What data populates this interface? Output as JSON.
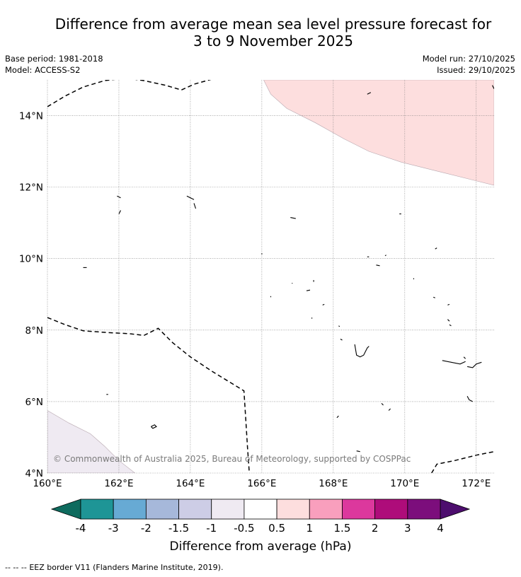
{
  "title": {
    "line1": "Difference from average mean sea level pressure forecast for",
    "line2": "3 to 9 November 2025"
  },
  "meta": {
    "base_period": "Base period: 1981-2018",
    "model": "Model: ACCESS-S2",
    "model_run": "Model run: 27/10/2025",
    "issued": "Issued: 29/10/2025"
  },
  "map": {
    "lon_range": [
      160,
      172.5
    ],
    "lat_range": [
      4,
      15
    ],
    "lon_ticks": [
      {
        "value": 160,
        "label": "160°E"
      },
      {
        "value": 162,
        "label": "162°E"
      },
      {
        "value": 164,
        "label": "164°E"
      },
      {
        "value": 166,
        "label": "166°E"
      },
      {
        "value": 168,
        "label": "168°E"
      },
      {
        "value": 170,
        "label": "170°E"
      },
      {
        "value": 172,
        "label": "172°E"
      }
    ],
    "lat_ticks": [
      {
        "value": 4,
        "label": "4°N"
      },
      {
        "value": 6,
        "label": "6°N"
      },
      {
        "value": 8,
        "label": "8°N"
      },
      {
        "value": 10,
        "label": "10°N"
      },
      {
        "value": 12,
        "label": "12°N"
      },
      {
        "value": 14,
        "label": "14°N"
      }
    ],
    "copyright": "© Commonwealth of Australia 2025, Bureau of Meteorology, supported by COSPPac",
    "regions": [
      {
        "category": "0.5 to 1",
        "color": "#fddede",
        "lonlat": [
          [
            166.05,
            15
          ],
          [
            166.25,
            14.6
          ],
          [
            166.7,
            14.2
          ],
          [
            167.5,
            13.8
          ],
          [
            168.3,
            13.35
          ],
          [
            169,
            13.0
          ],
          [
            169.9,
            12.7
          ],
          [
            170.9,
            12.45
          ],
          [
            171.9,
            12.2
          ],
          [
            172.5,
            12.05
          ],
          [
            172.5,
            15
          ]
        ]
      },
      {
        "category": "-1 to -0.5",
        "color": "#efeaf2",
        "lonlat": [
          [
            160,
            5.75
          ],
          [
            160.6,
            5.4
          ],
          [
            161.2,
            5.1
          ],
          [
            161.6,
            4.75
          ],
          [
            162,
            4.35
          ],
          [
            162.45,
            4.0
          ],
          [
            160,
            4.0
          ]
        ]
      }
    ],
    "eez_borders": [
      [
        [
          160,
          14.25
        ],
        [
          160.5,
          14.55
        ],
        [
          161,
          14.8
        ],
        [
          161.6,
          14.98
        ],
        [
          162.2,
          15.05
        ],
        [
          162.7,
          14.98
        ],
        [
          163.3,
          14.85
        ],
        [
          163.75,
          14.72
        ],
        [
          164.1,
          14.88
        ],
        [
          164.6,
          15.02
        ]
      ],
      [
        [
          160,
          8.35
        ],
        [
          160.5,
          8.15
        ],
        [
          161,
          7.98
        ],
        [
          161.7,
          7.93
        ],
        [
          162.3,
          7.9
        ],
        [
          162.7,
          7.85
        ],
        [
          163.1,
          8.05
        ],
        [
          163.5,
          7.65
        ],
        [
          164,
          7.25
        ],
        [
          164.6,
          6.85
        ],
        [
          165.5,
          6.3
        ],
        [
          165.55,
          5.5
        ],
        [
          165.6,
          4.7
        ],
        [
          165.65,
          4.0
        ]
      ],
      [
        [
          170.75,
          4.0
        ],
        [
          170.9,
          4.25
        ],
        [
          171.4,
          4.35
        ],
        [
          172,
          4.5
        ],
        [
          172.5,
          4.6
        ]
      ]
    ],
    "islands": [
      [
        [
          161.95,
          11.75
        ],
        [
          162.05,
          11.7
        ]
      ],
      [
        [
          162.05,
          11.35
        ],
        [
          162.0,
          11.25
        ]
      ],
      [
        [
          163.9,
          11.75
        ],
        [
          164.1,
          11.65
        ]
      ],
      [
        [
          164.1,
          11.55
        ],
        [
          164.15,
          11.4
        ]
      ],
      [
        [
          166.8,
          11.15
        ],
        [
          166.95,
          11.12
        ]
      ],
      [
        [
          169.85,
          11.25
        ],
        [
          169.9,
          11.25
        ]
      ],
      [
        [
          168.95,
          14.6
        ],
        [
          169.05,
          14.65
        ]
      ],
      [
        [
          172.45,
          14.85
        ],
        [
          172.5,
          14.75
        ]
      ],
      [
        [
          161,
          9.75
        ],
        [
          161.1,
          9.75
        ]
      ],
      [
        [
          166,
          10.15
        ],
        [
          166,
          10.12
        ]
      ],
      [
        [
          168.95,
          10.05
        ],
        [
          169,
          10.05
        ]
      ],
      [
        [
          169.45,
          10.08
        ],
        [
          169.48,
          10.1
        ]
      ],
      [
        [
          169.2,
          9.82
        ],
        [
          169.3,
          9.8
        ]
      ],
      [
        [
          170.25,
          9.45
        ],
        [
          170.25,
          9.42
        ]
      ],
      [
        [
          170.85,
          10.27
        ],
        [
          170.9,
          10.3
        ]
      ],
      [
        [
          166.25,
          8.92
        ],
        [
          166.25,
          8.95
        ]
      ],
      [
        [
          166.85,
          9.32
        ],
        [
          166.85,
          9.3
        ]
      ],
      [
        [
          167.25,
          9.1
        ],
        [
          167.35,
          9.12
        ]
      ],
      [
        [
          167.45,
          9.4
        ],
        [
          167.45,
          9.35
        ]
      ],
      [
        [
          167.75,
          8.72
        ],
        [
          167.7,
          8.7
        ]
      ],
      [
        [
          167.4,
          8.32
        ],
        [
          167.4,
          8.35
        ]
      ],
      [
        [
          168.15,
          8.12
        ],
        [
          168.18,
          8.1
        ]
      ],
      [
        [
          168.2,
          7.75
        ],
        [
          168.25,
          7.72
        ]
      ],
      [
        [
          168.6,
          7.6
        ],
        [
          168.65,
          7.3
        ],
        [
          168.75,
          7.25
        ],
        [
          168.85,
          7.3
        ],
        [
          168.95,
          7.5
        ],
        [
          169.0,
          7.55
        ]
      ],
      [
        [
          170.8,
          8.92
        ],
        [
          170.85,
          8.9
        ]
      ],
      [
        [
          171.2,
          8.7
        ],
        [
          171.25,
          8.72
        ]
      ],
      [
        [
          171.2,
          8.3
        ],
        [
          171.25,
          8.25
        ]
      ],
      [
        [
          171.25,
          8.15
        ],
        [
          171.3,
          8.12
        ]
      ],
      [
        [
          171.05,
          7.15
        ],
        [
          171.3,
          7.1
        ],
        [
          171.55,
          7.05
        ],
        [
          171.7,
          7.12
        ]
      ],
      [
        [
          171.75,
          6.98
        ],
        [
          171.9,
          6.95
        ],
        [
          172.0,
          7.05
        ],
        [
          172.15,
          7.1
        ]
      ],
      [
        [
          171.65,
          7.25
        ],
        [
          171.7,
          7.2
        ]
      ],
      [
        [
          171.75,
          6.15
        ],
        [
          171.8,
          6.05
        ],
        [
          171.9,
          6.0
        ]
      ],
      [
        [
          169.35,
          5.95
        ],
        [
          169.4,
          5.9
        ]
      ],
      [
        [
          169.6,
          5.8
        ],
        [
          169.55,
          5.75
        ]
      ],
      [
        [
          168.15,
          5.6
        ],
        [
          168.1,
          5.55
        ]
      ],
      [
        [
          168.65,
          4.62
        ],
        [
          168.75,
          4.6
        ]
      ],
      [
        [
          161.65,
          6.2
        ],
        [
          161.7,
          6.2
        ]
      ],
      [
        [
          162.9,
          5.3
        ],
        [
          163,
          5.35
        ],
        [
          163.05,
          5.3
        ],
        [
          162.95,
          5.25
        ],
        [
          162.9,
          5.3
        ]
      ]
    ]
  },
  "colorbar": {
    "label": "Difference from average (hPa)",
    "under_color": "#0e6b5e",
    "over_color": "#4d0e6e",
    "colors": [
      "#1e9596",
      "#67aad4",
      "#a6b8da",
      "#cdcde6",
      "#efeaf2",
      "#ffffff",
      "#fddede",
      "#f99fbd",
      "#dc389d",
      "#ae0c7a",
      "#7c0e7c"
    ],
    "tick_labels": [
      "-4",
      "-3",
      "-2",
      "-1.5",
      "-1",
      "-0.5",
      "0.5",
      "1",
      "1.5",
      "2",
      "3",
      "4"
    ]
  },
  "legend": {
    "eez_line_glyph": "--  --  --",
    "eez_text": "EEZ border V11 (Flanders Marine Institute, 2019)."
  }
}
